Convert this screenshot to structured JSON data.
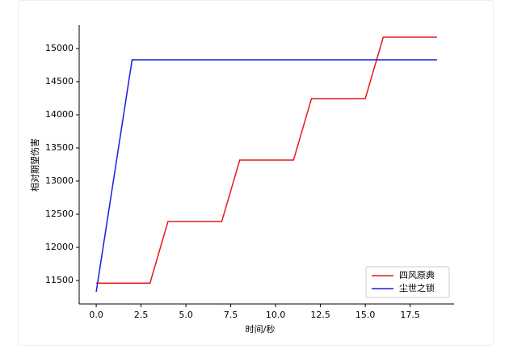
{
  "chart_data": {
    "type": "line",
    "xlabel": "时间/秒",
    "ylabel": "相对期望伤害",
    "series": [
      {
        "name": "四风原典",
        "color": "#e31a1c",
        "x": [
          0,
          3,
          4,
          7,
          8,
          11,
          12,
          15,
          16,
          19
        ],
        "values": [
          11460,
          11460,
          12390,
          12390,
          13317,
          13317,
          14244,
          14244,
          15171,
          15171
        ]
      },
      {
        "name": "尘世之锁",
        "color": "#1a1adf",
        "x": [
          0,
          2,
          19
        ],
        "values": [
          11329,
          14829,
          14829
        ]
      }
    ],
    "xlim": [
      -0.95,
      19.95
    ],
    "xticks": [
      {
        "value": 0,
        "label": "0.0"
      },
      2.5,
      {
        "value": 5,
        "label": "5.0"
      },
      7.5,
      {
        "value": 10,
        "label": "10.0"
      },
      12.5,
      {
        "value": 15,
        "label": "15.0"
      },
      17.5
    ],
    "ylim": [
      11146,
      15354
    ],
    "yticks": [
      11500,
      12000,
      12500,
      13000,
      13500,
      14000,
      14500,
      15000
    ],
    "legend": "lower right",
    "grid": false
  }
}
